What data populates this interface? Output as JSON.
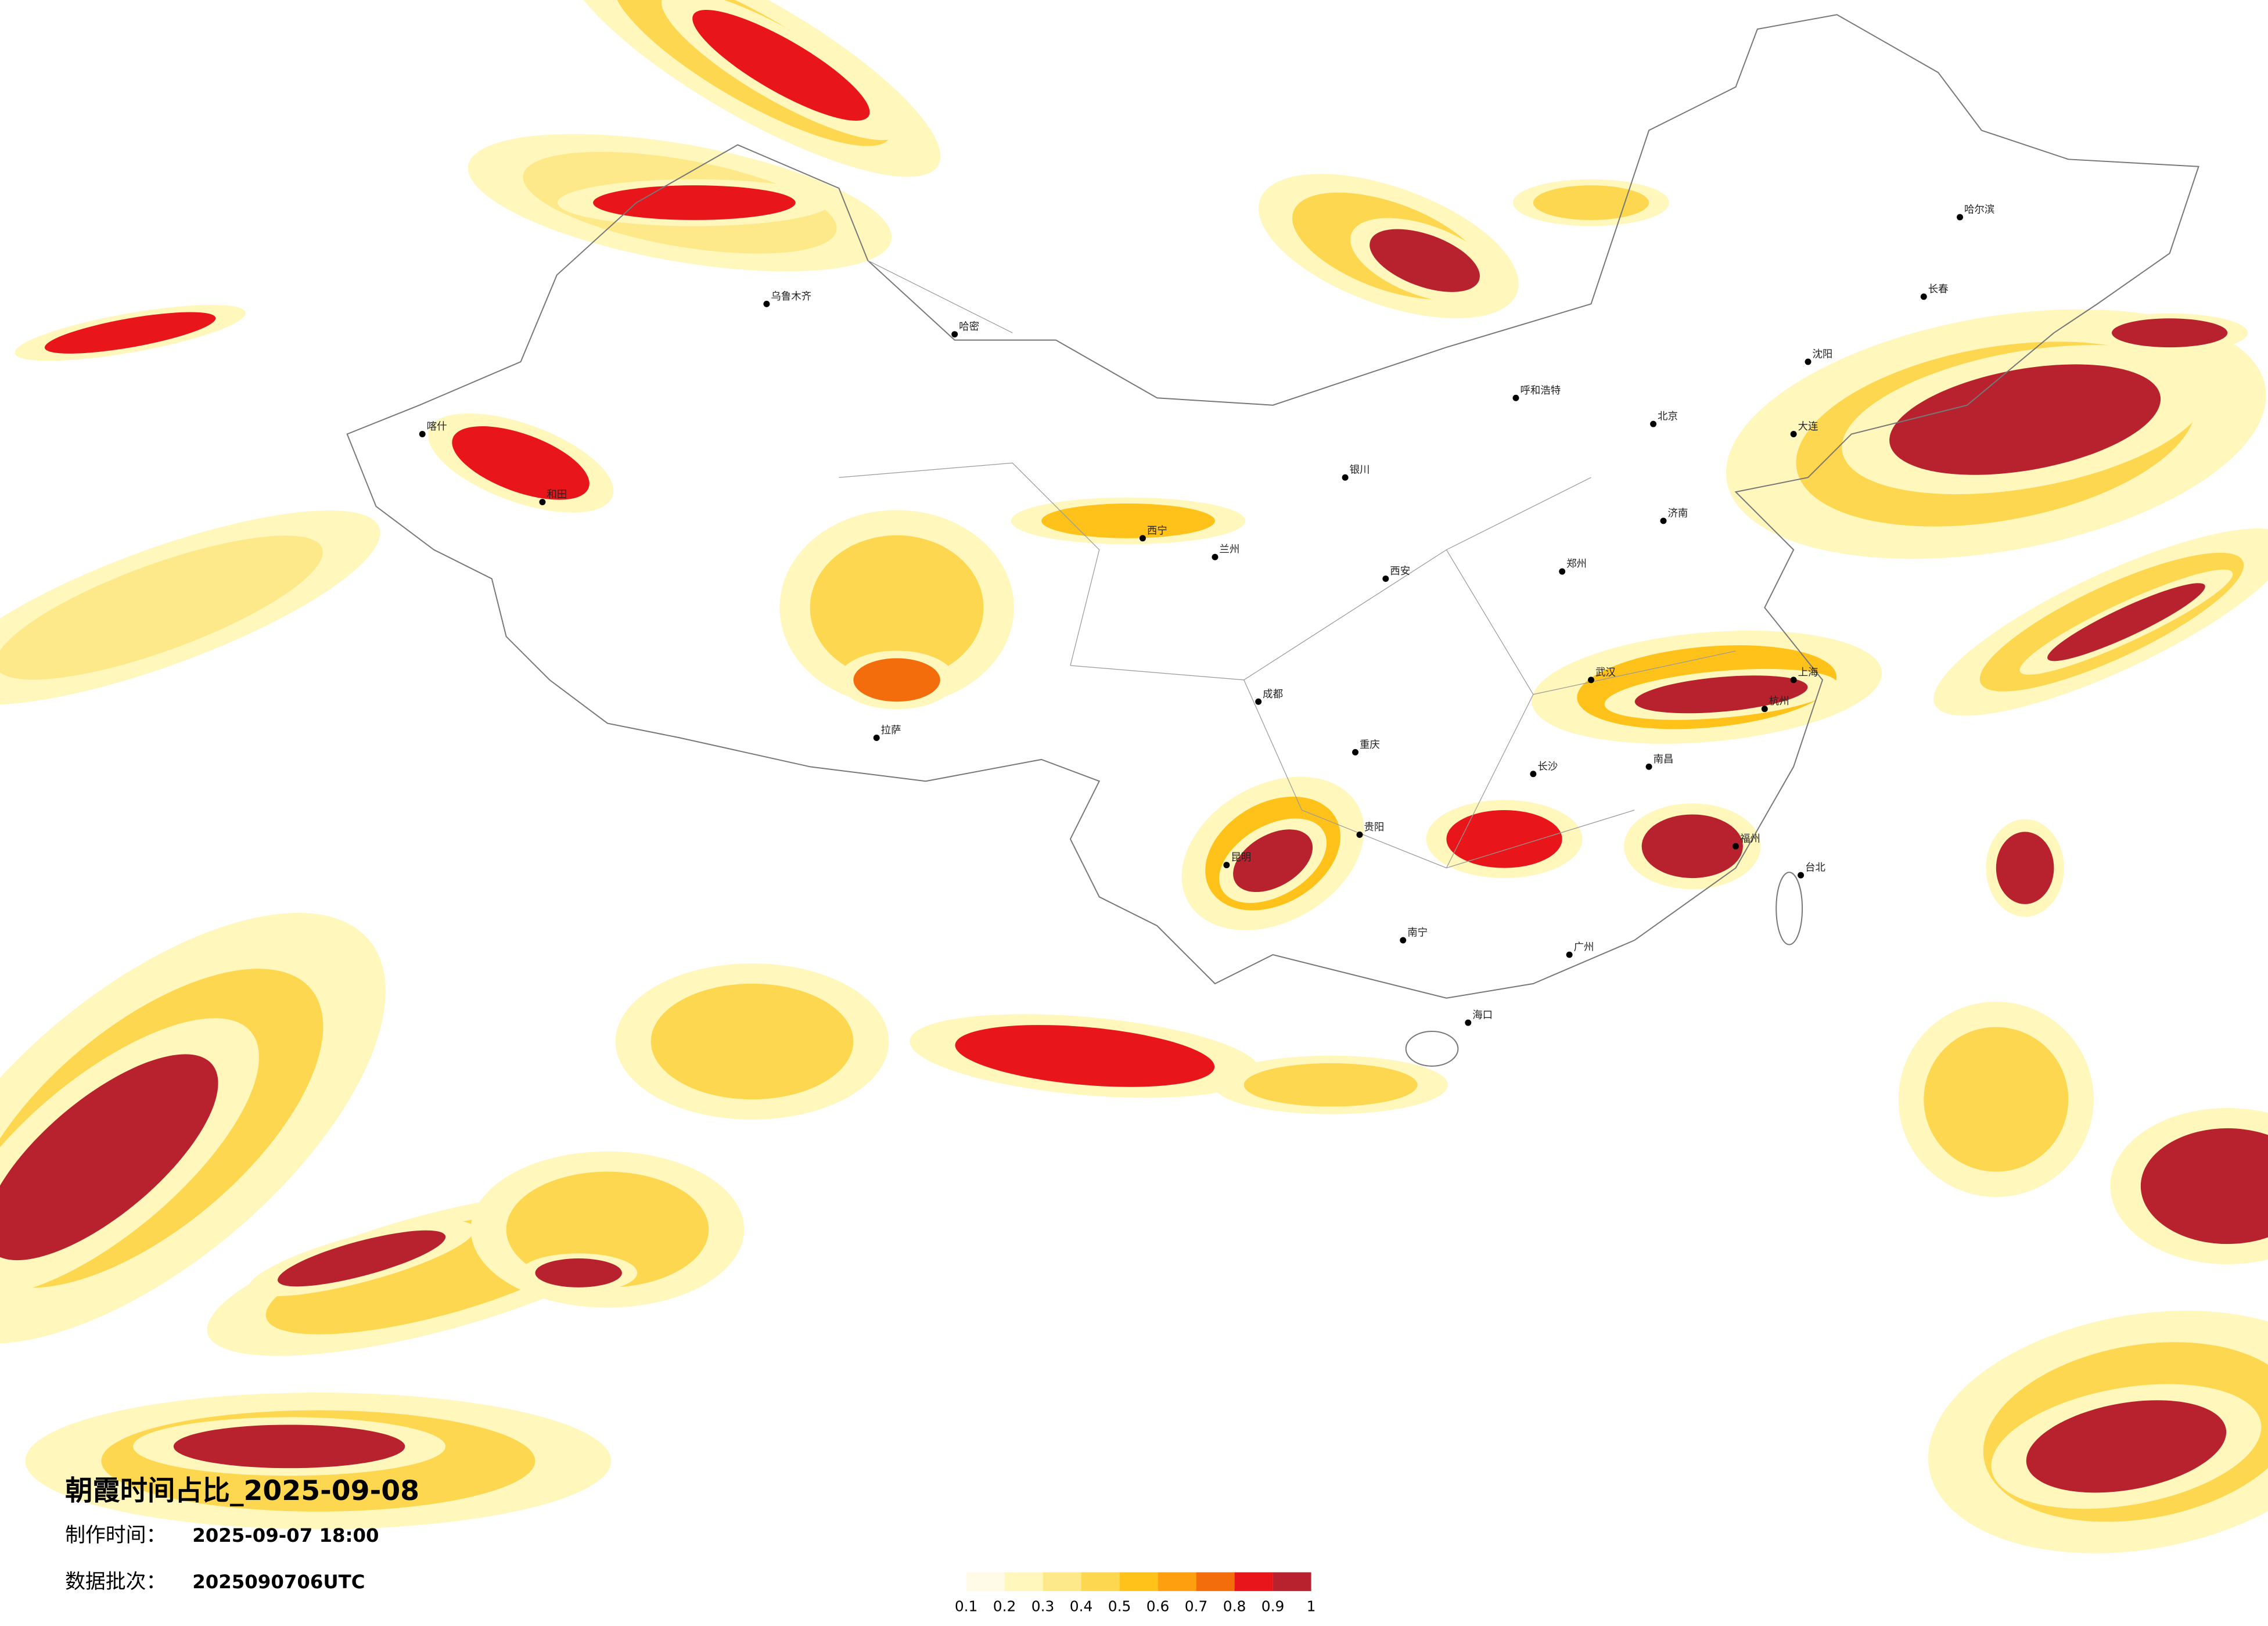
{
  "title": "朝霞时间占比_2025-09-08",
  "info": [
    {
      "label": "制作时间：",
      "value": "2025-09-07 18:00"
    },
    {
      "label": "数据批次：",
      "value": "2025090706UTC"
    }
  ],
  "legend": {
    "labels": [
      "0.1",
      "0.2",
      "0.3",
      "0.4",
      "0.5",
      "0.6",
      "0.7",
      "0.8",
      "0.9",
      "1"
    ],
    "colors": [
      "#fffbe6",
      "#fff7bc",
      "#fee98a",
      "#fed750",
      "#fec21a",
      "#fe9f0f",
      "#f46d0c",
      "#e8161a",
      "#b8222e"
    ]
  },
  "cities": [
    "北京",
    "上海",
    "乌鲁木齐",
    "拉萨",
    "哈尔滨",
    "广州",
    "成都",
    "西安",
    "兰州",
    "昆明",
    "武汉",
    "重庆",
    "海口",
    "台北",
    "沈阳",
    "呼和浩特",
    "南宁",
    "长沙",
    "郑州",
    "济南",
    "杭州",
    "福州",
    "哈密",
    "喀什",
    "和田",
    "西宁",
    "银川",
    "贵阳",
    "南昌",
    "长春",
    "大连"
  ]
}
